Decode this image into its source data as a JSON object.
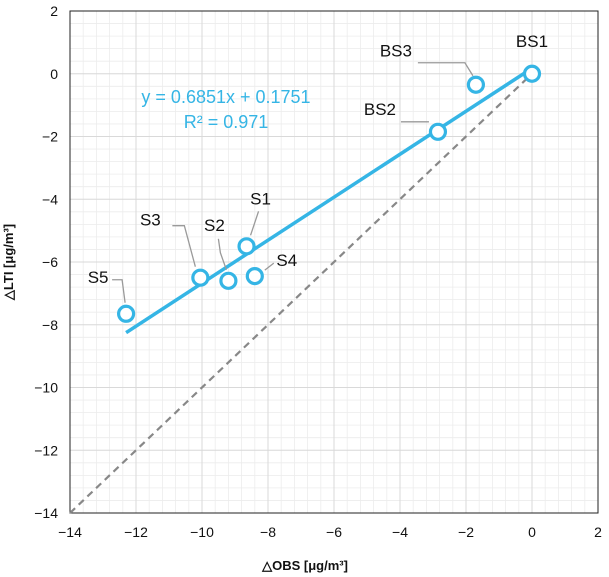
{
  "chart_data": {
    "type": "scatter",
    "xlabel": "△OBS [μg/m³]",
    "ylabel": "△LTI [μg/m³]",
    "xlim": [
      -14,
      2
    ],
    "ylim": [
      -14,
      2
    ],
    "x_ticks": [
      -14,
      -12,
      -10,
      -8,
      -6,
      -4,
      -2,
      0,
      2
    ],
    "y_ticks": [
      -14,
      -12,
      -10,
      -8,
      -6,
      -4,
      -2,
      0,
      2
    ],
    "grid": true,
    "points": [
      {
        "label": "BS1",
        "x": 0.0,
        "y": 0.0
      },
      {
        "label": "BS3",
        "x": -1.7,
        "y": -0.35
      },
      {
        "label": "BS2",
        "x": -2.85,
        "y": -1.85
      },
      {
        "label": "S1",
        "x": -8.65,
        "y": -5.5
      },
      {
        "label": "S2",
        "x": -9.2,
        "y": -6.6
      },
      {
        "label": "S3",
        "x": -10.05,
        "y": -6.5
      },
      {
        "label": "S4",
        "x": -8.4,
        "y": -6.45
      },
      {
        "label": "S5",
        "x": -12.3,
        "y": -7.65
      }
    ],
    "fit": {
      "slope": 0.6851,
      "intercept": 0.1751,
      "x_range": [
        -12.3,
        0
      ]
    },
    "equation_text": "y = 0.6851x + 0.1751",
    "r2_text": "R² = 0.971",
    "reference_line": {
      "type": "1:1",
      "style": "dashed"
    },
    "colors": {
      "series": "#35b5e5",
      "reference": "#888888",
      "grid": "#d9d9d9",
      "leader": "#9a9a9a"
    }
  }
}
